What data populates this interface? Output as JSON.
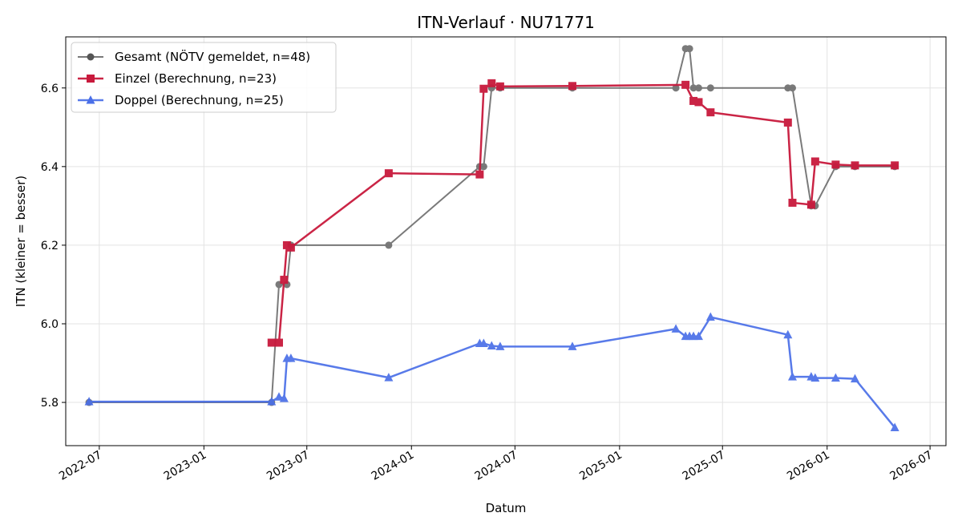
{
  "chart_data": {
    "type": "line",
    "title": "ITN-Verlauf · NU71771",
    "xlabel": "Datum",
    "ylabel": "ITN  (kleiner = besser)",
    "x_ticks": [
      "2022-07",
      "2023-01",
      "2023-07",
      "2024-01",
      "2024-07",
      "2025-01",
      "2025-07",
      "2026-01",
      "2026-07"
    ],
    "y_ticks": [
      "5.8",
      "6.0",
      "6.2",
      "6.4",
      "6.6"
    ],
    "xlim": [
      "2022-05-03",
      "2026-07-29"
    ],
    "ylim": [
      5.69,
      6.73
    ],
    "grid": true,
    "legend_position": "top-left",
    "series": [
      {
        "name": "Gesamt (NÖTV gemeldet, n=48)",
        "color": "#555555",
        "marker": "circle",
        "points": [
          [
            "2022-06-13",
            5.8
          ],
          [
            "2023-04-30",
            5.8
          ],
          [
            "2023-05-13",
            6.1
          ],
          [
            "2023-05-27",
            6.1
          ],
          [
            "2023-06-03",
            6.2
          ],
          [
            "2023-11-22",
            6.2
          ],
          [
            "2024-04-30",
            6.4
          ],
          [
            "2024-05-07",
            6.4
          ],
          [
            "2024-05-21",
            6.6
          ],
          [
            "2024-06-05",
            6.6
          ],
          [
            "2024-10-10",
            6.6
          ],
          [
            "2025-04-10",
            6.6
          ],
          [
            "2025-04-27",
            6.7
          ],
          [
            "2025-05-04",
            6.7
          ],
          [
            "2025-05-11",
            6.6
          ],
          [
            "2025-05-20",
            6.6
          ],
          [
            "2025-06-10",
            6.6
          ],
          [
            "2025-10-24",
            6.6
          ],
          [
            "2025-11-01",
            6.6
          ],
          [
            "2025-12-04",
            6.3
          ],
          [
            "2025-12-11",
            6.3
          ],
          [
            "2026-01-16",
            6.4
          ],
          [
            "2026-02-19",
            6.4
          ],
          [
            "2026-04-30",
            6.4
          ]
        ]
      },
      {
        "name": "Einzel (Berechnung, n=23)",
        "color": "#c8193c",
        "marker": "square",
        "points": [
          [
            "2023-04-30",
            5.952
          ],
          [
            "2023-05-13",
            5.952
          ],
          [
            "2023-05-22",
            6.112
          ],
          [
            "2023-05-27",
            6.2
          ],
          [
            "2023-06-03",
            6.194
          ],
          [
            "2023-11-22",
            6.383
          ],
          [
            "2024-04-30",
            6.38
          ],
          [
            "2024-05-07",
            6.598
          ],
          [
            "2024-05-21",
            6.612
          ],
          [
            "2024-06-05",
            6.604
          ],
          [
            "2024-10-10",
            6.605
          ],
          [
            "2025-04-27",
            6.608
          ],
          [
            "2025-05-11",
            6.567
          ],
          [
            "2025-05-20",
            6.564
          ],
          [
            "2025-06-10",
            6.538
          ],
          [
            "2025-10-24",
            6.512
          ],
          [
            "2025-11-01",
            6.308
          ],
          [
            "2025-12-04",
            6.303
          ],
          [
            "2025-12-11",
            6.413
          ],
          [
            "2026-01-16",
            6.405
          ],
          [
            "2026-02-19",
            6.403
          ],
          [
            "2026-04-30",
            6.403
          ]
        ]
      },
      {
        "name": "Doppel (Berechnung, n=25)",
        "color": "#4a6fe8",
        "marker": "triangle",
        "points": [
          [
            "2022-06-13",
            5.802
          ],
          [
            "2023-04-30",
            5.802
          ],
          [
            "2023-05-13",
            5.814
          ],
          [
            "2023-05-22",
            5.81
          ],
          [
            "2023-05-27",
            5.912
          ],
          [
            "2023-06-03",
            5.912
          ],
          [
            "2023-11-22",
            5.863
          ],
          [
            "2024-04-30",
            5.95
          ],
          [
            "2024-05-07",
            5.95
          ],
          [
            "2024-05-21",
            5.944
          ],
          [
            "2024-06-05",
            5.942
          ],
          [
            "2024-10-10",
            5.942
          ],
          [
            "2025-04-10",
            5.987
          ],
          [
            "2025-04-27",
            5.968
          ],
          [
            "2025-05-04",
            5.968
          ],
          [
            "2025-05-11",
            5.968
          ],
          [
            "2025-05-20",
            5.968
          ],
          [
            "2025-06-10",
            6.017
          ],
          [
            "2025-10-24",
            5.972
          ],
          [
            "2025-11-01",
            5.865
          ],
          [
            "2025-12-04",
            5.865
          ],
          [
            "2025-12-11",
            5.862
          ],
          [
            "2026-01-16",
            5.862
          ],
          [
            "2026-02-19",
            5.86
          ],
          [
            "2026-04-30",
            5.736
          ]
        ]
      }
    ]
  }
}
